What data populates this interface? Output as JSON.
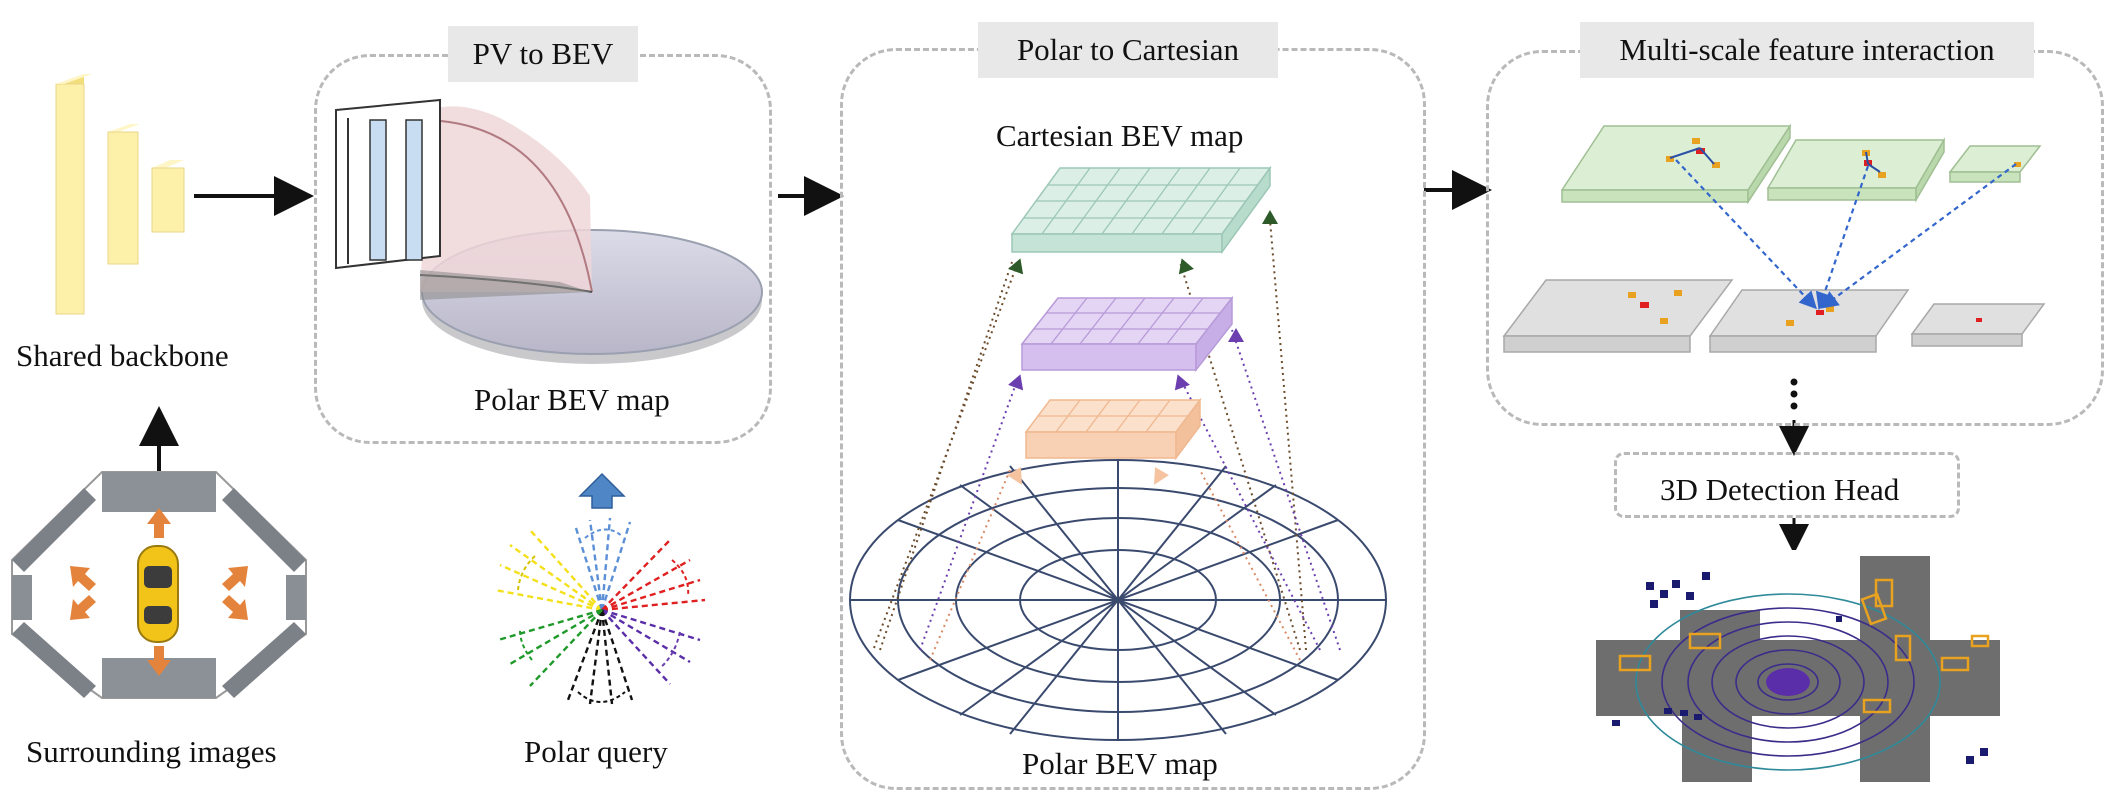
{
  "sections": {
    "backbone": {
      "label": "Shared backbone"
    },
    "images": {
      "label": "Surrounding images"
    },
    "pv_to_bev": {
      "title": "PV to BEV",
      "map_label": "Polar BEV map"
    },
    "polar_query": {
      "label": "Polar query"
    },
    "polar_to_cartesian": {
      "title": "Polar to Cartesian",
      "top_label": "Cartesian BEV map",
      "bottom_label": "Polar BEV map"
    },
    "multiscale": {
      "title": "Multi-scale feature interaction"
    },
    "detection_head": {
      "label": "3D Detection Head"
    }
  },
  "colors": {
    "backbone_fill": "#fdf0a8",
    "car_yellow": "#f2c319",
    "arrow_orange": "#e4843c",
    "polar_blue": "#5b8fd6",
    "cartesian_green": "#cfe6dc",
    "mid_purple": "#cdb3e8",
    "low_peach": "#f8d0b3",
    "plate_green": "#dcefd4",
    "plate_gray": "#d8d8d8",
    "bev_dark": "#6e6e6e",
    "box_orange": "#e8a21f",
    "ring_blue": "#3a2d8a"
  },
  "icons": [
    "backbone-icon",
    "camera-view-icon",
    "car-icon",
    "polar-query-icon",
    "point-cloud-icon"
  ]
}
